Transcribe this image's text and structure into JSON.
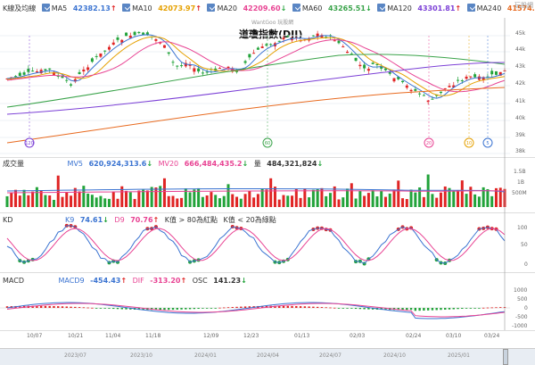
{
  "main": {
    "legend_label": "K線及均線",
    "ma": [
      {
        "name": "MA5",
        "value": "42382.13",
        "arrow": "↑",
        "color": "#3a73d1"
      },
      {
        "name": "MA10",
        "value": "42073.97",
        "arrow": "↑",
        "color": "#e5a000"
      },
      {
        "name": "MA20",
        "value": "42209.60",
        "arrow": "↓",
        "color": "#e84393"
      },
      {
        "name": "MA60",
        "value": "43265.51",
        "arrow": "↓",
        "color": "#3aa34a"
      },
      {
        "name": "MA120",
        "value": "43301.81",
        "arrow": "↑",
        "color": "#7b3fd6"
      },
      {
        "name": "MA240",
        "value": "41574.71",
        "arrow": "↑",
        "color": "#e86a1f"
      }
    ],
    "watermark": "WantGoo 玩股網",
    "title": "道瓊指數(DJI)",
    "logo": "玩股網",
    "y_ticks": [
      "45k",
      "44k",
      "43k",
      "42k",
      "41k",
      "40k",
      "39k",
      "38k"
    ],
    "markers": [
      {
        "label": "120",
        "color": "#7b3fd6"
      },
      {
        "label": "60",
        "color": "#3aa34a"
      },
      {
        "label": "20",
        "color": "#e84393"
      },
      {
        "label": "10",
        "color": "#e5a000"
      },
      {
        "label": "5",
        "color": "#3a73d1"
      }
    ]
  },
  "volume": {
    "legend_label": "成交量",
    "mv5_label": "MV5",
    "mv5_value": "620,924,313.6",
    "mv5_arrow": "↓",
    "mv5_color": "#3a73d1",
    "mv20_label": "MV20",
    "mv20_value": "666,484,435.2",
    "mv20_arrow": "↓",
    "mv20_color": "#e84393",
    "vol_label": "量",
    "vol_value": "484,321,824",
    "vol_arrow": "↓",
    "y_ticks": [
      "1.5B",
      "1B",
      "500M"
    ]
  },
  "kd": {
    "legend_label": "KD",
    "k_label": "K9",
    "k_value": "74.61",
    "k_arrow": "↓",
    "k_color": "#3a73d1",
    "d_label": "D9",
    "d_value": "70.76",
    "d_arrow": "↑",
    "d_color": "#e84393",
    "note1": "K值 > 80為紅點",
    "note2": "K值 < 20為綠點",
    "y_ticks": [
      "100",
      "50",
      "0"
    ]
  },
  "macd": {
    "legend_label": "MACD",
    "macd_label": "MACD9",
    "macd_value": "-454.43",
    "macd_arrow": "↑",
    "macd_color": "#3a73d1",
    "dif_label": "DIF",
    "dif_value": "-313.20",
    "dif_arrow": "↑",
    "dif_color": "#e84393",
    "osc_label": "OSC",
    "osc_value": "141.23",
    "osc_arrow": "↓",
    "y_ticks": [
      "1000",
      "500",
      "0",
      "-500",
      "-1000"
    ]
  },
  "x_dates": [
    "10/07",
    "10/21",
    "11/04",
    "11/18",
    "12/09",
    "12/23",
    "01/13",
    "02/03",
    "02/24",
    "03/10",
    "03/24"
  ],
  "footer_dates": [
    "2023/07",
    "2023/10",
    "2024/01",
    "2024/04",
    "2024/07",
    "2024/10",
    "2025/01"
  ],
  "colors": {
    "up": "#e02424",
    "down": "#22a33a"
  }
}
